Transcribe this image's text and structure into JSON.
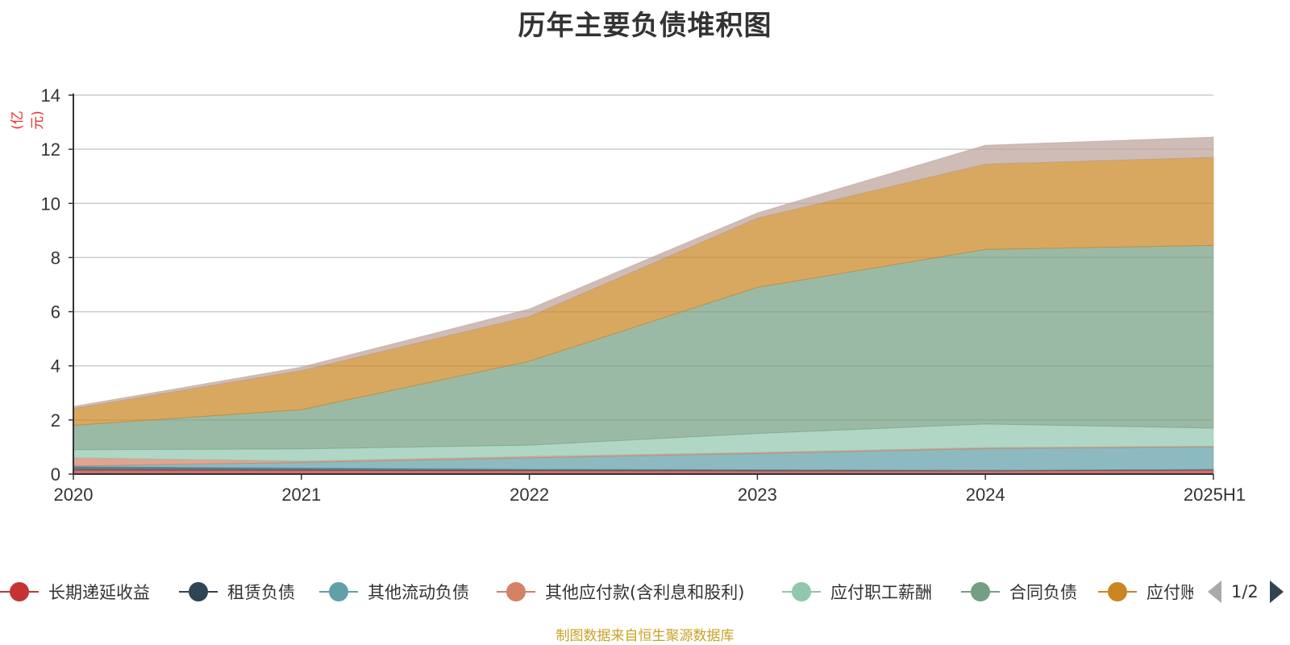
{
  "title": "历年主要负债堆积图",
  "unit_label": "(亿元)",
  "footer": "制图数据来自恒生聚源数据库",
  "pager": {
    "text": "1/2"
  },
  "chart_data": {
    "type": "area",
    "stacked": true,
    "title": "历年主要负债堆积图",
    "ylabel": "(亿元)",
    "x": [
      "2020",
      "2021",
      "2022",
      "2023",
      "2024",
      "2025H1"
    ],
    "ylim": [
      0,
      14
    ],
    "yticks": [
      0,
      2,
      4,
      6,
      8,
      10,
      12,
      14
    ],
    "grid": true,
    "legend_position": "bottom",
    "series": [
      {
        "name": "长期递延收益",
        "color": "#c23531",
        "values": [
          0.15,
          0.14,
          0.13,
          0.12,
          0.12,
          0.15
        ]
      },
      {
        "name": "租赁负债",
        "color": "#2f4554",
        "values": [
          0.12,
          0.08,
          0.05,
          0.04,
          0.02,
          0.02
        ]
      },
      {
        "name": "其他流动负债",
        "color": "#61a0a8",
        "values": [
          0.03,
          0.21,
          0.42,
          0.6,
          0.8,
          0.83
        ]
      },
      {
        "name": "其他应付款(含利息和股利)",
        "color": "#d48265",
        "values": [
          0.3,
          0.05,
          0.05,
          0.04,
          0.04,
          0.03
        ]
      },
      {
        "name": "应付职工薪酬",
        "color": "#91c7ae",
        "values": [
          0.3,
          0.45,
          0.42,
          0.7,
          0.87,
          0.67
        ]
      },
      {
        "name": "合同负债",
        "color": "#749f83",
        "values": [
          0.9,
          1.45,
          3.1,
          5.4,
          6.45,
          6.75
        ]
      },
      {
        "name": "应付账款",
        "color": "#ca8622",
        "values": [
          0.62,
          1.44,
          1.65,
          2.55,
          3.15,
          3.25
        ]
      },
      {
        "name": "",
        "color": "#bda29a",
        "values": [
          0.08,
          0.13,
          0.28,
          0.2,
          0.7,
          0.75
        ]
      }
    ]
  },
  "legend": {
    "items": [
      {
        "name": "长期递延收益",
        "color": "#c23531"
      },
      {
        "name": "租赁负债",
        "color": "#2f4554"
      },
      {
        "name": "其他流动负债",
        "color": "#61a0a8"
      },
      {
        "name": "其他应付款(含利息和股利)",
        "color": "#d48265"
      },
      {
        "name": "应付职工薪酬",
        "color": "#91c7ae"
      },
      {
        "name": "合同负债",
        "color": "#749f83"
      },
      {
        "name": "应付账款",
        "color": "#ca8622"
      }
    ]
  }
}
